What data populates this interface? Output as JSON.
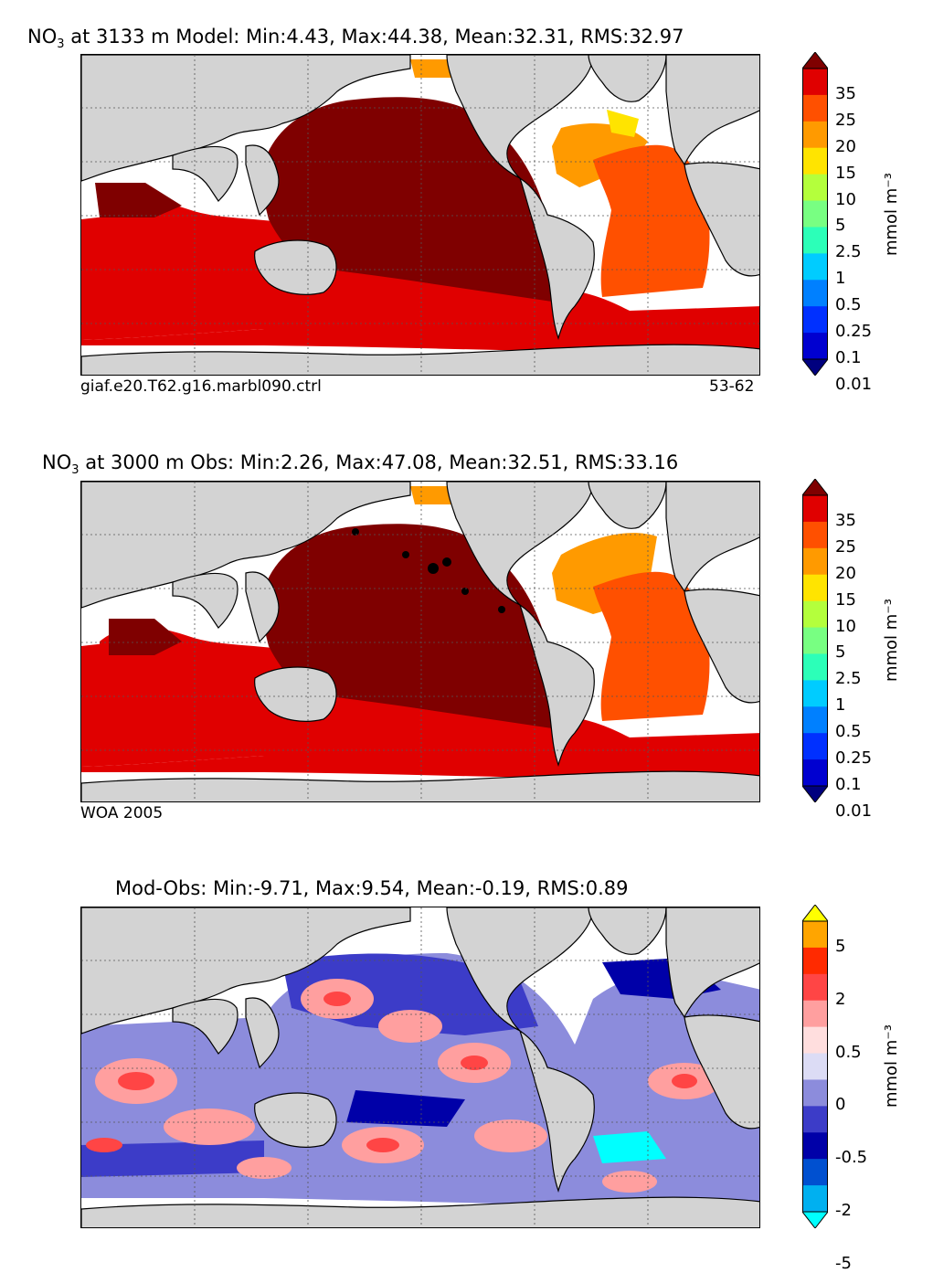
{
  "panels": [
    {
      "title_pre": "NO",
      "title_sub": "3",
      "title_rest": " at 3133 m Model: Min:4.43, Max:44.38, Mean:32.31, RMS:32.97",
      "footer_left": "giaf.e20.T62.g16.marbl090.ctrl",
      "footer_right": "53-62",
      "colorbar_unit": "mmol m⁻³",
      "colorbar_ticks": [
        "35",
        "25",
        "20",
        "15",
        "10",
        "5",
        "2.5",
        "1",
        "0.5",
        "0.25",
        "0.1",
        "0.01"
      ],
      "colorbar_colors": [
        "#7f0000",
        "#e00000",
        "#ff5000",
        "#ff9a00",
        "#ffe400",
        "#b4ff3c",
        "#78ff82",
        "#2cffb8",
        "#00ccff",
        "#0080ff",
        "#0030ff",
        "#0000d0",
        "#00007f"
      ]
    },
    {
      "title_pre": "NO",
      "title_sub": "3",
      "title_rest": " at 3000 m Obs: Min:2.26, Max:47.08, Mean:32.51, RMS:33.16",
      "footer_left": "WOA 2005",
      "footer_right": "",
      "colorbar_unit": "mmol m⁻³",
      "colorbar_ticks": [
        "35",
        "25",
        "20",
        "15",
        "10",
        "5",
        "2.5",
        "1",
        "0.5",
        "0.25",
        "0.1",
        "0.01"
      ],
      "colorbar_colors": [
        "#7f0000",
        "#e00000",
        "#ff5000",
        "#ff9a00",
        "#ffe400",
        "#b4ff3c",
        "#78ff82",
        "#2cffb8",
        "#00ccff",
        "#0080ff",
        "#0030ff",
        "#0000d0",
        "#00007f"
      ]
    },
    {
      "title_pre": "",
      "title_sub": "",
      "title_rest": "Mod-Obs: Min:-9.71, Max:9.54, Mean:-0.19, RMS:0.89",
      "footer_left": "",
      "footer_right": "",
      "colorbar_unit": "mmol m⁻³",
      "colorbar_ticks": [
        "5",
        "2",
        "0.5",
        "0",
        "-0.5",
        "-2",
        "-5"
      ],
      "colorbar_colors": [
        "#ffff00",
        "#ffa500",
        "#ff2a00",
        "#ff4545",
        "#ff9f9f",
        "#ffdede",
        "#dcdcf5",
        "#8c8cdc",
        "#3c3cc8",
        "#0000a8",
        "#0050d0",
        "#00b0f0",
        "#00ffff"
      ]
    }
  ],
  "colors": {
    "land": "#d3d3d3",
    "nodata": "#ffffff"
  }
}
